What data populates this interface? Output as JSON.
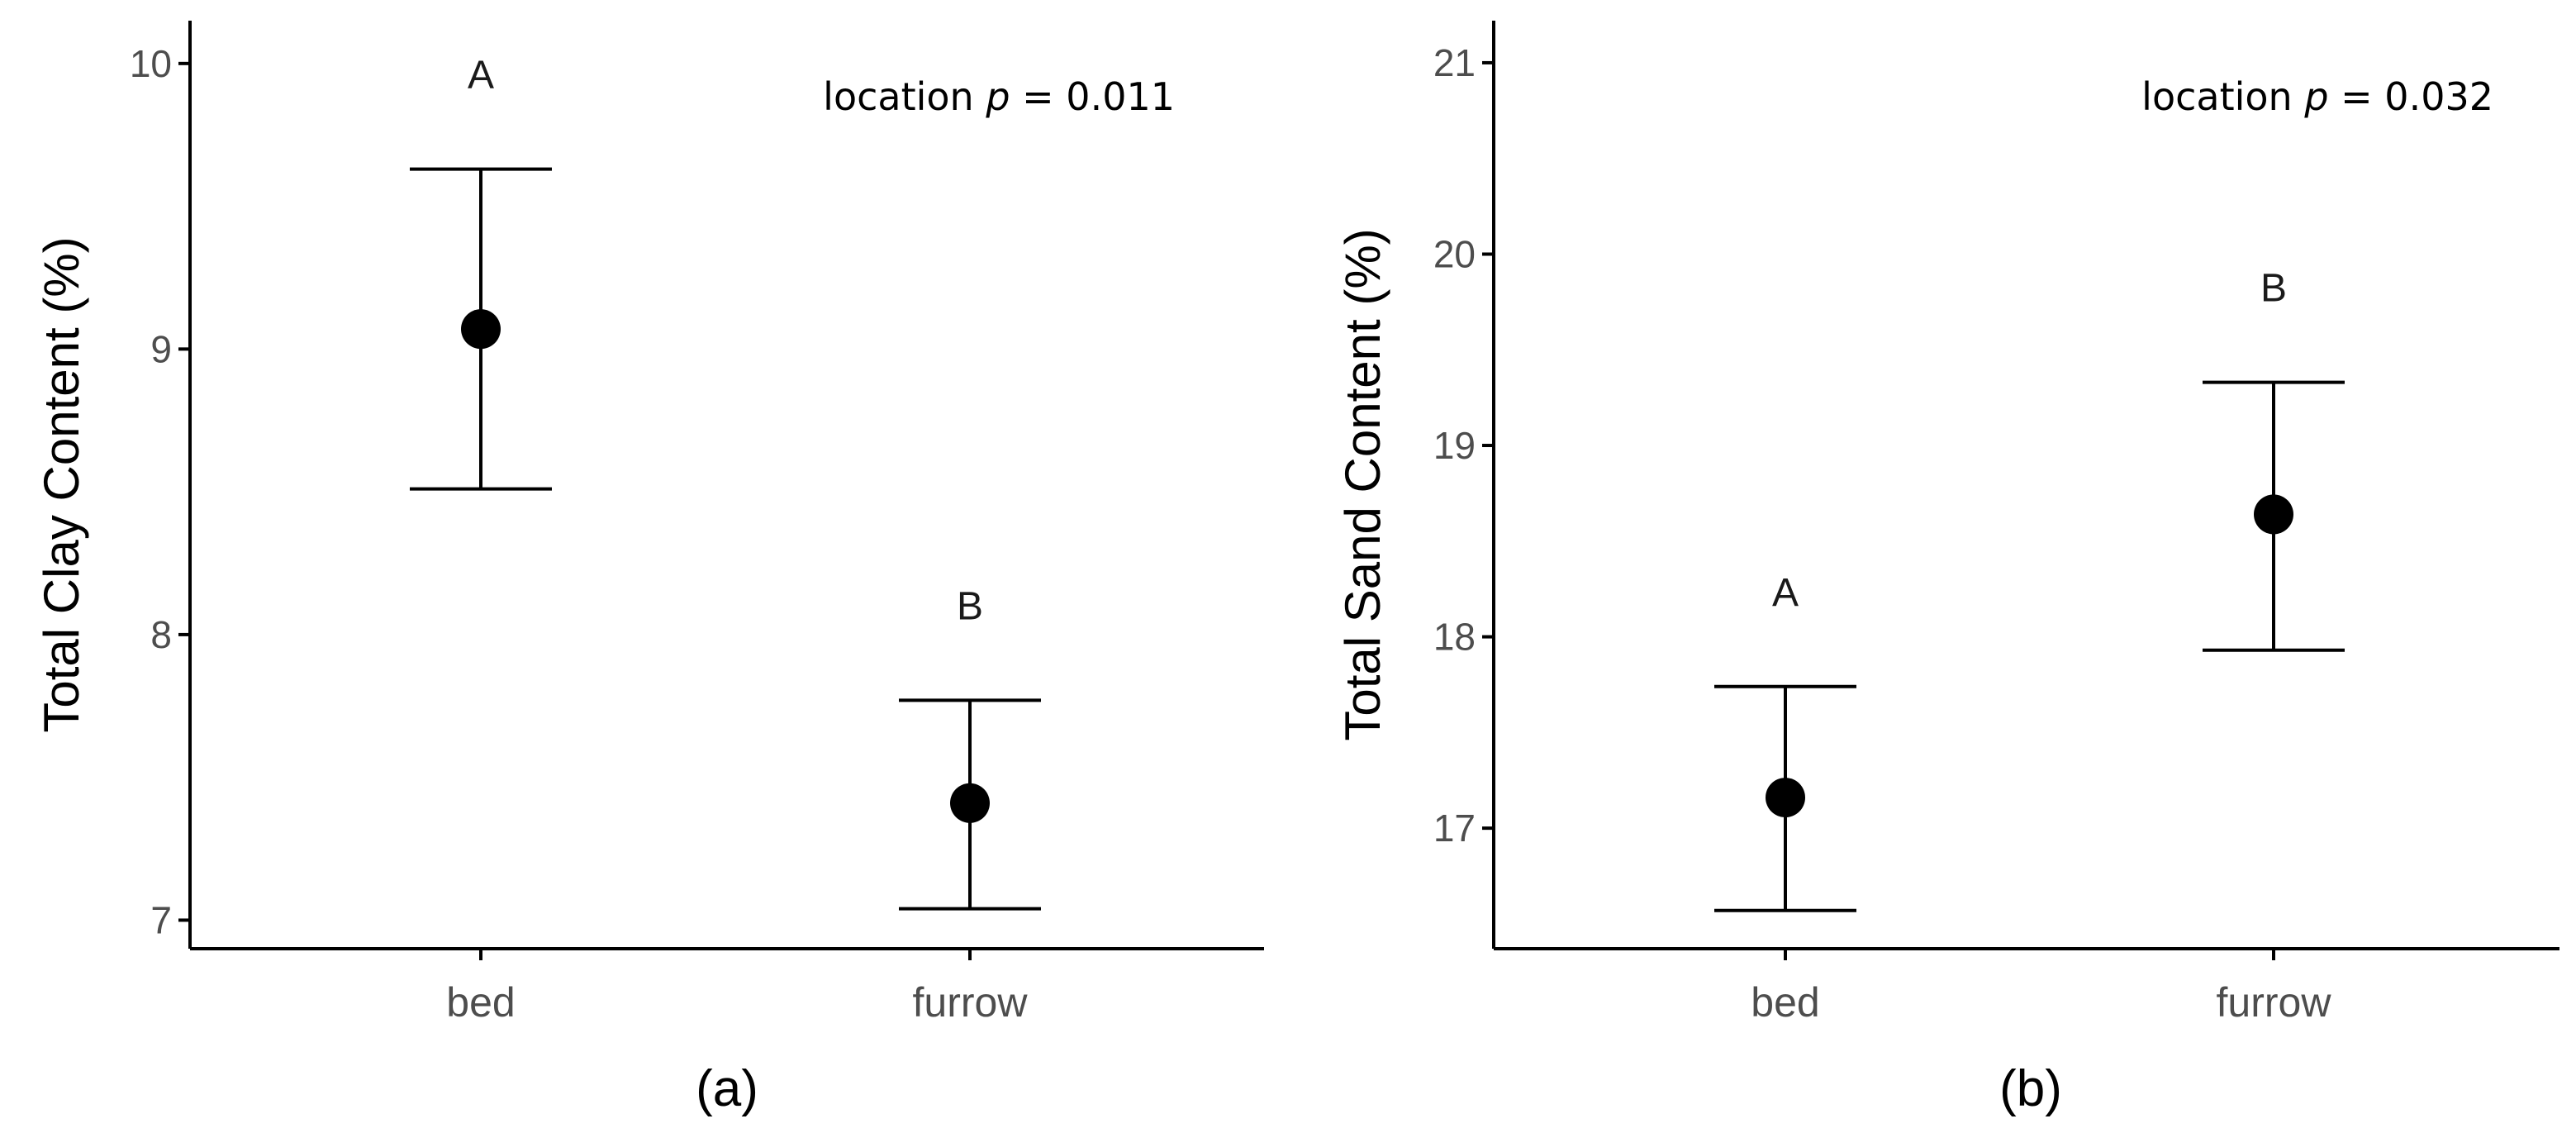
{
  "chart_data": [
    {
      "type": "scatter",
      "panel_label": "(a)",
      "xlabel": "",
      "ylabel": "Total Clay Content (%)",
      "categories": [
        "bed",
        "furrow"
      ],
      "means": [
        9.07,
        7.41
      ],
      "error_low": [
        8.51,
        7.04
      ],
      "error_high": [
        9.63,
        7.77
      ],
      "group_letters": [
        "A",
        "B"
      ],
      "ylim": [
        6.9,
        10.15
      ],
      "yticks": [
        7,
        8,
        9,
        10
      ],
      "annotation": {
        "prefix": "location ",
        "italic": "p",
        "suffix": " = 0.011"
      },
      "grid": false
    },
    {
      "type": "scatter",
      "panel_label": "(b)",
      "xlabel": "",
      "ylabel": "Total Sand Content (%)",
      "categories": [
        "bed",
        "furrow"
      ],
      "means": [
        17.16,
        18.64
      ],
      "error_low": [
        16.57,
        17.93
      ],
      "error_high": [
        17.74,
        19.33
      ],
      "group_letters": [
        "A",
        "B"
      ],
      "ylim": [
        16.37,
        21.22
      ],
      "yticks": [
        17,
        18,
        19,
        20,
        21
      ],
      "annotation": {
        "prefix": "location ",
        "italic": "p",
        "suffix": " = 0.032"
      },
      "grid": false
    }
  ],
  "colors": {
    "points": "#000000",
    "axis": "#000000",
    "tick_text": "#4d4d4d"
  }
}
